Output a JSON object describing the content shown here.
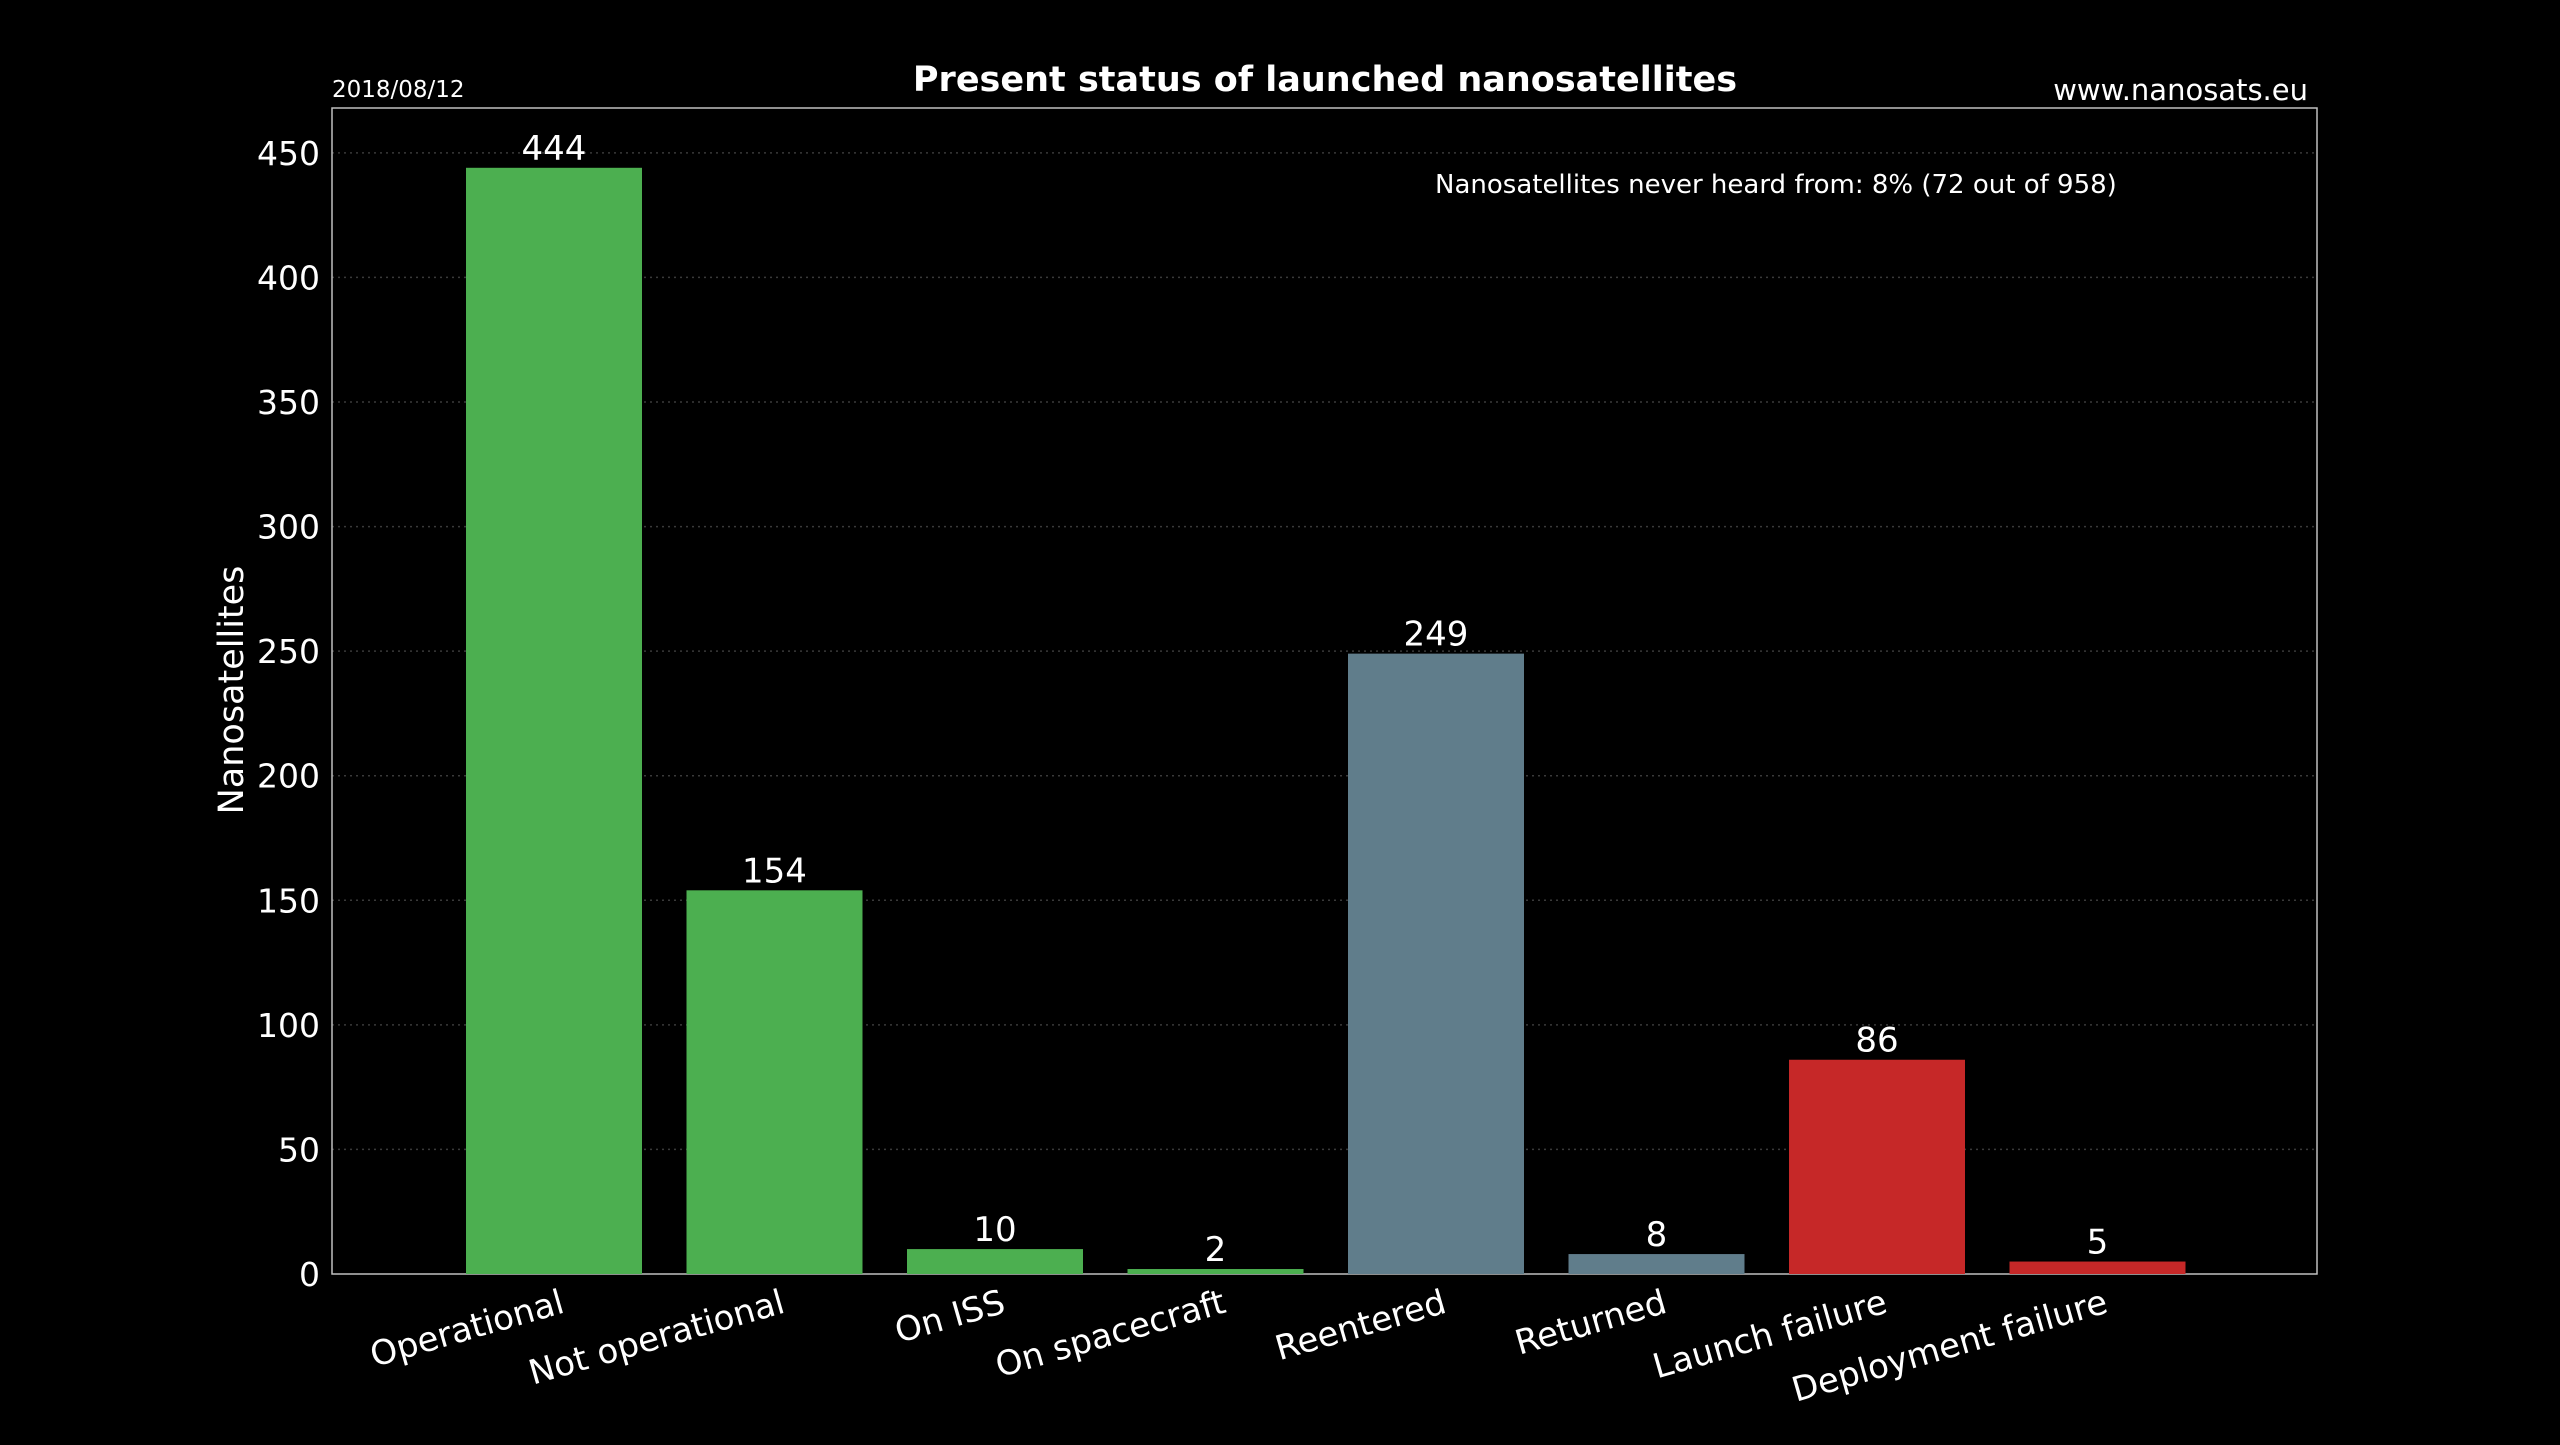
{
  "header": {
    "title": "Present status of launched nanosatellites",
    "date": "2018/08/12",
    "website": "www.nanosats.eu"
  },
  "annotation": "Nanosatellites never heard from: 8% (72 out of 958)",
  "colors": {
    "background": "#000000",
    "axis": "#bfbfbf",
    "grid": "#3a3a3a",
    "text": "#ffffff"
  },
  "chart_data": {
    "type": "bar",
    "title": "Present status of launched nanosatellites",
    "xlabel": "",
    "ylabel": "Nanosatellites",
    "ylim": [
      0,
      468
    ],
    "yticks": [
      0,
      50,
      100,
      150,
      200,
      250,
      300,
      350,
      400,
      450
    ],
    "grid": true,
    "categories": [
      "Operational",
      "Not operational",
      "On ISS",
      "On spacecraft",
      "Reentered",
      "Returned",
      "Launch failure",
      "Deployment failure"
    ],
    "values": [
      444,
      154,
      10,
      2,
      249,
      8,
      86,
      5
    ],
    "bar_colors": [
      "#4caf50",
      "#4caf50",
      "#4caf50",
      "#4caf50",
      "#607d8b",
      "#607d8b",
      "#c62828",
      "#c62828"
    ],
    "data_labels": [
      "444",
      "154",
      "10",
      "2",
      "249",
      "8",
      "86",
      "5"
    ]
  }
}
